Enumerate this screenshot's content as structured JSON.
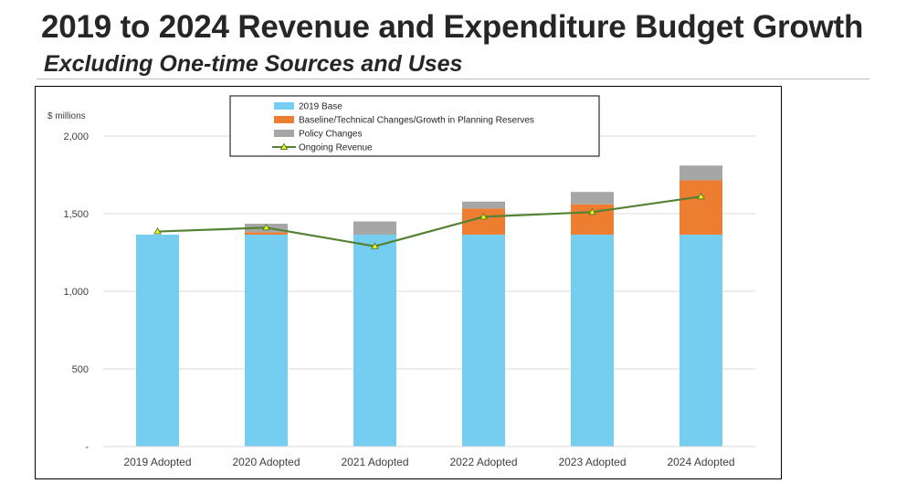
{
  "slide": {
    "title": "2019 to 2024 Revenue and Expenditure Budget Growth",
    "subtitle": "Excluding One-time Sources and Uses"
  },
  "colors": {
    "base": "#75cdef",
    "baseline": "#ed7d31",
    "policy": "#a6a6a6",
    "revenue_line": "#548235",
    "revenue_marker": "#ffff00",
    "gridline": "#d9d9d9"
  },
  "chart_data": {
    "type": "bar",
    "stacked": true,
    "title": "",
    "unit_label": "$ millions",
    "ylim": [
      0,
      2000
    ],
    "y_ticks": [
      0,
      500,
      1000,
      1500,
      2000
    ],
    "y_tick_labels": [
      "-",
      "500",
      "1,000",
      "1,500",
      "2,000"
    ],
    "categories": [
      "2019 Adopted",
      "2020 Adopted",
      "2021 Adopted",
      "2022 Adopted",
      "2023 Adopted",
      "2024 Adopted"
    ],
    "series": [
      {
        "name": "2019 Base",
        "kind": "bar",
        "values": [
          1365,
          1365,
          1365,
          1365,
          1365,
          1365
        ]
      },
      {
        "name": "Baseline/Technical Changes/Growth in Planning Reserves",
        "kind": "bar",
        "values": [
          0,
          15,
          0,
          168,
          195,
          350
        ]
      },
      {
        "name": "Policy Changes",
        "kind": "bar",
        "values": [
          0,
          55,
          85,
          45,
          80,
          95
        ]
      },
      {
        "name": "Ongoing Revenue",
        "kind": "line",
        "values": [
          1385,
          1410,
          1290,
          1480,
          1510,
          1610
        ]
      }
    ],
    "legend_position": "top-center"
  }
}
